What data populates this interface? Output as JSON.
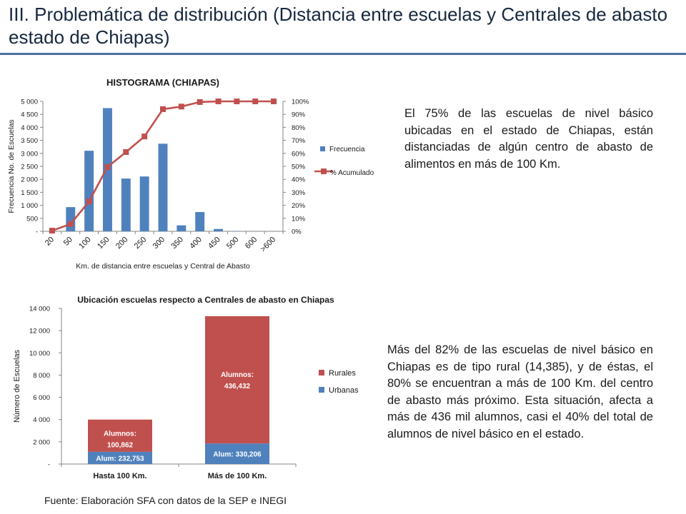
{
  "slide": {
    "title": "III. Problemática de distribución (Distancia entre escuelas y Centrales de abasto estado de Chiapas)",
    "paragraph_1": "El 75% de las escuelas de nivel básico ubicadas en el estado de Chiapas, están distanciadas de algún centro de abasto de alimentos en más de 100 Km.",
    "paragraph_2": "Más del 82% de las escuelas de nivel básico en Chiapas es de tipo rural (14,385), y de éstas, el 80% se encuentran a más de 100 Km. del centro de abasto más próximo. Esta situación, afecta a más de 436 mil alumnos, casi el 40% del total de alumnos de nivel básico en el estado.",
    "source": "Fuente: Elaboración SFA con datos de la SEP e INEGI"
  },
  "chart_data": [
    {
      "type": "bar",
      "title": "HISTOGRAMA (CHIAPAS)",
      "xlabel": "Km. de distancia entre escuelas y Central de Abasto",
      "ylabel": "Frecuencia No. de Escuelas",
      "categories": [
        "20",
        "50",
        "100",
        "150",
        "200",
        "250",
        "300",
        "350",
        "400",
        "450",
        "500",
        "600",
        ">600"
      ],
      "ylim": [
        0,
        5000
      ],
      "yticks": [
        0,
        500,
        1000,
        1500,
        2000,
        2500,
        3000,
        3500,
        4000,
        4500,
        5000
      ],
      "ytick_labels": [
        "-",
        "500",
        "1 000",
        "1 500",
        "2 000",
        "2 500",
        "3 000",
        "3 500",
        "4 000",
        "4 500",
        "5 000"
      ],
      "y2lim": [
        0,
        100
      ],
      "y2ticks": [
        0,
        10,
        20,
        30,
        40,
        50,
        60,
        70,
        80,
        90,
        100
      ],
      "y2tick_labels": [
        "0%",
        "10%",
        "20%",
        "30%",
        "40%",
        "50%",
        "60%",
        "70%",
        "80%",
        "90%",
        "100%"
      ],
      "series": [
        {
          "name": "Frecuencia",
          "type": "bar",
          "axis": "left",
          "color": "#4f81bd",
          "values": [
            10,
            930,
            3100,
            4740,
            2030,
            2110,
            3370,
            230,
            740,
            90,
            10,
            5,
            5
          ]
        },
        {
          "name": "% Acumulado",
          "type": "line",
          "axis": "right",
          "color": "#c0504d",
          "values": [
            0.5,
            5.6,
            23,
            49.5,
            61,
            73,
            94,
            96,
            99.5,
            100,
            100,
            100,
            100
          ]
        }
      ],
      "legend": "right",
      "grid": false
    },
    {
      "type": "bar",
      "stacked": true,
      "title": "Ubicación escuelas respecto a Centrales de abasto en Chiapas",
      "xlabel": "",
      "ylabel": "Número de Escuelas",
      "categories": [
        "Hasta 100 Km.",
        "Más de 100 Km."
      ],
      "ylim": [
        0,
        14000
      ],
      "yticks": [
        0,
        2000,
        4000,
        6000,
        8000,
        10000,
        12000,
        14000
      ],
      "ytick_labels": [
        "-",
        "2 000",
        "4 000",
        "6 000",
        "8 000",
        "10 000",
        "12 000",
        "14 000"
      ],
      "series": [
        {
          "name": "Urbanas",
          "color": "#4f81bd",
          "values": [
            1100,
            1850
          ],
          "labels": [
            "Alum:  232,753",
            "Alum: 330,206"
          ]
        },
        {
          "name": "Rurales",
          "color": "#c0504d",
          "values": [
            2900,
            11450
          ],
          "labels": [
            [
              "Alumnos:",
              "100,862"
            ],
            [
              "Alumnos:",
              "436,432"
            ]
          ]
        }
      ],
      "legend_order": [
        "Rurales",
        "Urbanas"
      ],
      "legend": "right",
      "grid": false
    }
  ]
}
